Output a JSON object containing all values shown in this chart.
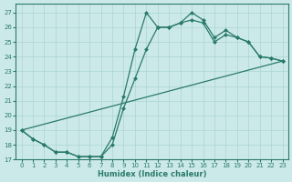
{
  "xlabel": "Humidex (Indice chaleur)",
  "xlim": [
    -0.5,
    23.5
  ],
  "ylim": [
    17,
    27.6
  ],
  "yticks": [
    17,
    18,
    19,
    20,
    21,
    22,
    23,
    24,
    25,
    26,
    27
  ],
  "xticks": [
    0,
    1,
    2,
    3,
    4,
    5,
    6,
    7,
    8,
    9,
    10,
    11,
    12,
    13,
    14,
    15,
    16,
    17,
    18,
    19,
    20,
    21,
    22,
    23
  ],
  "bg_color": "#cce9e9",
  "grid_color": "#aad4d4",
  "line_color": "#2a7a6a",
  "curve1_x": [
    0,
    1,
    2,
    3,
    4,
    5,
    6,
    7,
    8,
    9,
    10,
    11,
    12,
    13,
    14,
    15,
    16,
    17,
    18,
    19,
    20,
    21,
    22,
    23
  ],
  "curve1_y": [
    19.0,
    18.4,
    18.0,
    17.5,
    17.5,
    17.2,
    17.2,
    17.2,
    18.5,
    21.3,
    24.5,
    27.0,
    26.0,
    26.0,
    26.3,
    27.0,
    26.5,
    25.3,
    25.8,
    25.3,
    25.0,
    24.0,
    23.9,
    23.7
  ],
  "curve2_x": [
    0,
    1,
    2,
    3,
    4,
    5,
    6,
    7,
    8,
    9,
    10,
    11,
    12,
    13,
    14,
    15,
    16,
    17,
    18,
    19,
    20,
    21,
    22,
    23
  ],
  "curve2_y": [
    19.0,
    18.4,
    18.0,
    17.5,
    17.5,
    17.2,
    17.2,
    17.2,
    18.0,
    20.5,
    22.5,
    24.5,
    26.0,
    26.0,
    26.3,
    26.5,
    26.3,
    25.0,
    25.5,
    25.3,
    25.0,
    24.0,
    23.9,
    23.7
  ],
  "curve3_x": [
    0,
    23
  ],
  "curve3_y": [
    19.0,
    23.7
  ]
}
